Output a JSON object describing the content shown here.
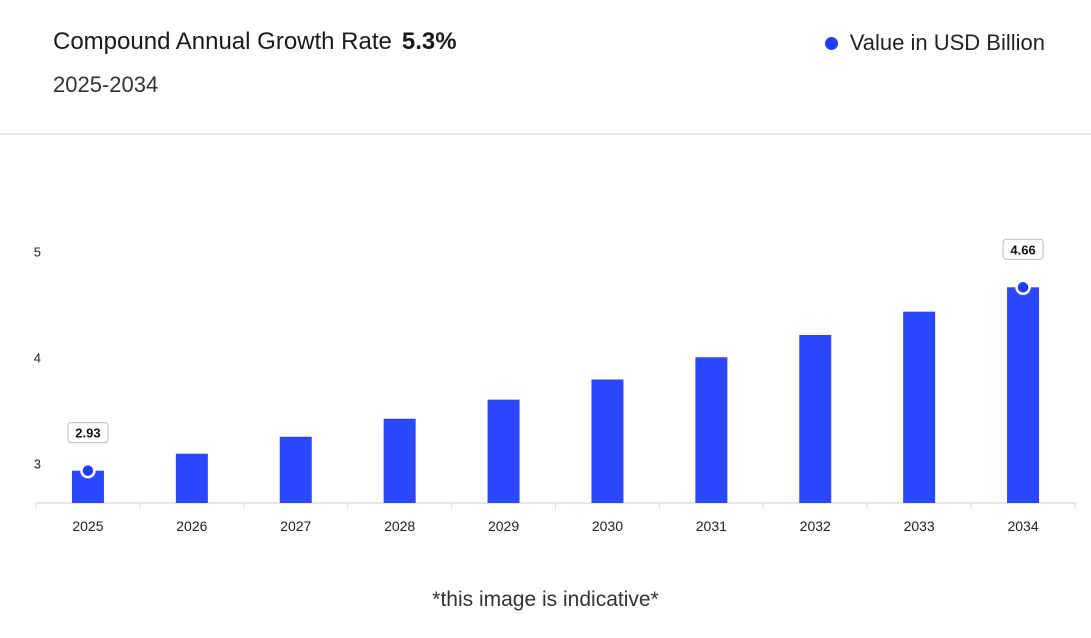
{
  "header": {
    "cagr_label": "Compound Annual Growth Rate",
    "cagr_value": "5.3%",
    "period": "2025-2034",
    "legend_label": "Value in USD Billion"
  },
  "footnote": "*this image is indicative*",
  "colors": {
    "bar": "#2b47ff",
    "dot": "#1f3dff",
    "axis": "#dddddd"
  },
  "chart_data": {
    "type": "bar",
    "title": "Compound Annual Growth Rate 5.3%",
    "subtitle": "2025-2034",
    "xlabel": "",
    "ylabel": "",
    "legend": [
      "Value in USD Billion"
    ],
    "categories": [
      "2025",
      "2026",
      "2027",
      "2028",
      "2029",
      "2030",
      "2031",
      "2032",
      "2033",
      "2034"
    ],
    "values": [
      2.93,
      3.09,
      3.25,
      3.42,
      3.6,
      3.79,
      4.0,
      4.21,
      4.43,
      4.66
    ],
    "value_labels": [
      "2.93",
      "",
      "",
      "",
      "",
      "",
      "",
      "",
      "",
      "4.66"
    ],
    "yticks": [
      3,
      4,
      5
    ],
    "ylim": [
      2.6,
      5.0
    ]
  }
}
